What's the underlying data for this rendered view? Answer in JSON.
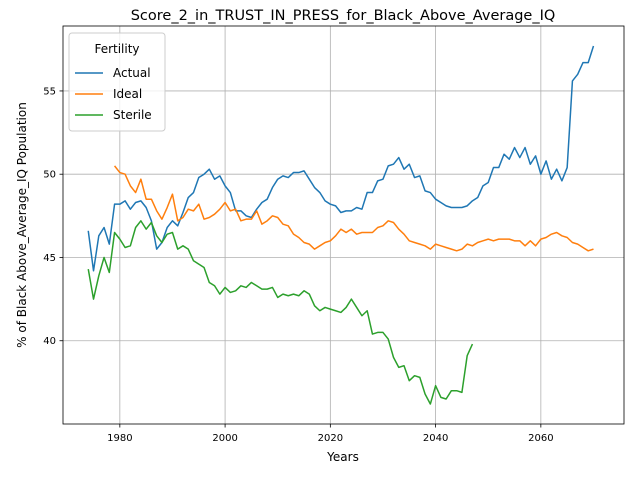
{
  "chart_data": {
    "type": "line",
    "title": "Score_2_in_TRUST_IN_PRESS_for_Black_Above_Average_IQ",
    "xlabel": "Years",
    "ylabel": "% of Black Above_Average_IQ Population",
    "xlim": [
      1969.2,
      2075.8
    ],
    "ylim": [
      35.0,
      58.9
    ],
    "xticks": [
      1980,
      2000,
      2020,
      2040,
      2060
    ],
    "yticks": [
      40,
      45,
      50,
      55
    ],
    "grid": true,
    "legend": {
      "title": "Fertility",
      "placement": "top-left"
    },
    "series": [
      {
        "name": "Actual",
        "color": "#1f77b4",
        "points": [
          [
            1974,
            46.6
          ],
          [
            1975,
            44.2
          ],
          [
            1976,
            46.3
          ],
          [
            1977,
            46.8
          ],
          [
            1978,
            45.8
          ],
          [
            1979,
            48.2
          ],
          [
            1980,
            48.2
          ],
          [
            1981,
            48.4
          ],
          [
            1982,
            47.9
          ],
          [
            1983,
            48.3
          ],
          [
            1984,
            48.4
          ],
          [
            1985,
            48.0
          ],
          [
            1986,
            47.2
          ],
          [
            1987,
            45.5
          ],
          [
            1988,
            45.9
          ],
          [
            1989,
            46.8
          ],
          [
            1990,
            47.2
          ],
          [
            1991,
            46.9
          ],
          [
            1992,
            47.7
          ],
          [
            1993,
            48.6
          ],
          [
            1994,
            48.9
          ],
          [
            1995,
            49.8
          ],
          [
            1996,
            50.0
          ],
          [
            1997,
            50.3
          ],
          [
            1998,
            49.7
          ],
          [
            1999,
            49.9
          ],
          [
            2000,
            49.3
          ],
          [
            2001,
            48.9
          ],
          [
            2002,
            47.8
          ],
          [
            2003,
            47.8
          ],
          [
            2004,
            47.5
          ],
          [
            2005,
            47.4
          ],
          [
            2006,
            47.9
          ],
          [
            2007,
            48.3
          ],
          [
            2008,
            48.5
          ],
          [
            2009,
            49.2
          ],
          [
            2010,
            49.7
          ],
          [
            2011,
            49.9
          ],
          [
            2012,
            49.8
          ],
          [
            2013,
            50.1
          ],
          [
            2014,
            50.1
          ],
          [
            2015,
            50.2
          ],
          [
            2016,
            49.7
          ],
          [
            2017,
            49.2
          ],
          [
            2018,
            48.9
          ],
          [
            2019,
            48.4
          ],
          [
            2020,
            48.2
          ],
          [
            2021,
            48.1
          ],
          [
            2022,
            47.7
          ],
          [
            2023,
            47.8
          ],
          [
            2024,
            47.8
          ],
          [
            2025,
            48.0
          ],
          [
            2026,
            47.9
          ],
          [
            2027,
            48.9
          ],
          [
            2028,
            48.9
          ],
          [
            2029,
            49.6
          ],
          [
            2030,
            49.7
          ],
          [
            2031,
            50.5
          ],
          [
            2032,
            50.6
          ],
          [
            2033,
            51.0
          ],
          [
            2034,
            50.3
          ],
          [
            2035,
            50.6
          ],
          [
            2036,
            49.8
          ],
          [
            2037,
            49.9
          ],
          [
            2038,
            49.0
          ],
          [
            2039,
            48.9
          ],
          [
            2040,
            48.5
          ],
          [
            2041,
            48.3
          ],
          [
            2042,
            48.1
          ],
          [
            2043,
            48.0
          ],
          [
            2044,
            48.0
          ],
          [
            2045,
            48.0
          ],
          [
            2046,
            48.1
          ],
          [
            2047,
            48.4
          ],
          [
            2048,
            48.6
          ],
          [
            2049,
            49.3
          ],
          [
            2050,
            49.5
          ],
          [
            2051,
            50.4
          ],
          [
            2052,
            50.4
          ],
          [
            2053,
            51.2
          ],
          [
            2054,
            50.9
          ],
          [
            2055,
            51.6
          ],
          [
            2056,
            51.0
          ],
          [
            2057,
            51.6
          ],
          [
            2058,
            50.6
          ],
          [
            2059,
            51.1
          ],
          [
            2060,
            50.0
          ],
          [
            2061,
            50.8
          ],
          [
            2062,
            49.7
          ],
          [
            2063,
            50.3
          ],
          [
            2064,
            49.6
          ],
          [
            2065,
            50.4
          ],
          [
            2066,
            55.6
          ],
          [
            2067,
            56.0
          ],
          [
            2068,
            56.7
          ],
          [
            2069,
            56.7
          ],
          [
            2070,
            57.7
          ]
        ]
      },
      {
        "name": "Ideal",
        "color": "#ff7f0e",
        "points": [
          [
            1979,
            50.5
          ],
          [
            1980,
            50.1
          ],
          [
            1981,
            50.0
          ],
          [
            1982,
            49.3
          ],
          [
            1983,
            48.9
          ],
          [
            1984,
            49.7
          ],
          [
            1985,
            48.5
          ],
          [
            1986,
            48.5
          ],
          [
            1987,
            47.8
          ],
          [
            1988,
            47.3
          ],
          [
            1989,
            48.0
          ],
          [
            1990,
            48.8
          ],
          [
            1991,
            47.2
          ],
          [
            1992,
            47.4
          ],
          [
            1993,
            47.9
          ],
          [
            1994,
            47.8
          ],
          [
            1995,
            48.2
          ],
          [
            1996,
            47.3
          ],
          [
            1997,
            47.4
          ],
          [
            1998,
            47.6
          ],
          [
            1999,
            47.9
          ],
          [
            2000,
            48.3
          ],
          [
            2001,
            47.8
          ],
          [
            2002,
            47.9
          ],
          [
            2003,
            47.2
          ],
          [
            2004,
            47.3
          ],
          [
            2005,
            47.3
          ],
          [
            2006,
            47.8
          ],
          [
            2007,
            47.0
          ],
          [
            2008,
            47.2
          ],
          [
            2009,
            47.5
          ],
          [
            2010,
            47.4
          ],
          [
            2011,
            47.0
          ],
          [
            2012,
            46.9
          ],
          [
            2013,
            46.4
          ],
          [
            2014,
            46.2
          ],
          [
            2015,
            45.9
          ],
          [
            2016,
            45.8
          ],
          [
            2017,
            45.5
          ],
          [
            2018,
            45.7
          ],
          [
            2019,
            45.9
          ],
          [
            2020,
            46.0
          ],
          [
            2021,
            46.3
          ],
          [
            2022,
            46.7
          ],
          [
            2023,
            46.5
          ],
          [
            2024,
            46.7
          ],
          [
            2025,
            46.4
          ],
          [
            2026,
            46.5
          ],
          [
            2027,
            46.5
          ],
          [
            2028,
            46.5
          ],
          [
            2029,
            46.8
          ],
          [
            2030,
            46.9
          ],
          [
            2031,
            47.2
          ],
          [
            2032,
            47.1
          ],
          [
            2033,
            46.7
          ],
          [
            2034,
            46.4
          ],
          [
            2035,
            46.0
          ],
          [
            2036,
            45.9
          ],
          [
            2037,
            45.8
          ],
          [
            2038,
            45.7
          ],
          [
            2039,
            45.5
          ],
          [
            2040,
            45.8
          ],
          [
            2041,
            45.7
          ],
          [
            2042,
            45.6
          ],
          [
            2043,
            45.5
          ],
          [
            2044,
            45.4
          ],
          [
            2045,
            45.5
          ],
          [
            2046,
            45.8
          ],
          [
            2047,
            45.7
          ],
          [
            2048,
            45.9
          ],
          [
            2049,
            46.0
          ],
          [
            2050,
            46.1
          ],
          [
            2051,
            46.0
          ],
          [
            2052,
            46.1
          ],
          [
            2053,
            46.1
          ],
          [
            2054,
            46.1
          ],
          [
            2055,
            46.0
          ],
          [
            2056,
            46.0
          ],
          [
            2057,
            45.7
          ],
          [
            2058,
            46.0
          ],
          [
            2059,
            45.7
          ],
          [
            2060,
            46.1
          ],
          [
            2061,
            46.2
          ],
          [
            2062,
            46.4
          ],
          [
            2063,
            46.5
          ],
          [
            2064,
            46.3
          ],
          [
            2065,
            46.2
          ],
          [
            2066,
            45.9
          ],
          [
            2067,
            45.8
          ],
          [
            2068,
            45.6
          ],
          [
            2069,
            45.4
          ],
          [
            2070,
            45.5
          ]
        ]
      },
      {
        "name": "Sterile",
        "color": "#2ca02c",
        "points": [
          [
            1974,
            44.3
          ],
          [
            1975,
            42.5
          ],
          [
            1976,
            43.9
          ],
          [
            1977,
            45.0
          ],
          [
            1978,
            44.1
          ],
          [
            1979,
            46.5
          ],
          [
            1980,
            46.1
          ],
          [
            1981,
            45.6
          ],
          [
            1982,
            45.7
          ],
          [
            1983,
            46.8
          ],
          [
            1984,
            47.2
          ],
          [
            1985,
            46.7
          ],
          [
            1986,
            47.1
          ],
          [
            1987,
            46.3
          ],
          [
            1988,
            45.9
          ],
          [
            1989,
            46.4
          ],
          [
            1990,
            46.5
          ],
          [
            1991,
            45.5
          ],
          [
            1992,
            45.7
          ],
          [
            1993,
            45.5
          ],
          [
            1994,
            44.8
          ],
          [
            1995,
            44.6
          ],
          [
            1996,
            44.4
          ],
          [
            1997,
            43.5
          ],
          [
            1998,
            43.3
          ],
          [
            1999,
            42.8
          ],
          [
            2000,
            43.2
          ],
          [
            2001,
            42.9
          ],
          [
            2002,
            43.0
          ],
          [
            2003,
            43.3
          ],
          [
            2004,
            43.2
          ],
          [
            2005,
            43.5
          ],
          [
            2006,
            43.3
          ],
          [
            2007,
            43.1
          ],
          [
            2008,
            43.1
          ],
          [
            2009,
            43.2
          ],
          [
            2010,
            42.6
          ],
          [
            2011,
            42.8
          ],
          [
            2012,
            42.7
          ],
          [
            2013,
            42.8
          ],
          [
            2014,
            42.7
          ],
          [
            2015,
            43.0
          ],
          [
            2016,
            42.8
          ],
          [
            2017,
            42.1
          ],
          [
            2018,
            41.8
          ],
          [
            2019,
            42.0
          ],
          [
            2020,
            41.9
          ],
          [
            2021,
            41.8
          ],
          [
            2022,
            41.7
          ],
          [
            2023,
            42.0
          ],
          [
            2024,
            42.5
          ],
          [
            2025,
            42.0
          ],
          [
            2026,
            41.5
          ],
          [
            2027,
            41.8
          ],
          [
            2028,
            40.4
          ],
          [
            2029,
            40.5
          ],
          [
            2030,
            40.5
          ],
          [
            2031,
            40.1
          ],
          [
            2032,
            39.0
          ],
          [
            2033,
            38.4
          ],
          [
            2034,
            38.5
          ],
          [
            2035,
            37.6
          ],
          [
            2036,
            37.9
          ],
          [
            2037,
            37.8
          ],
          [
            2038,
            36.8
          ],
          [
            2039,
            36.2
          ],
          [
            2040,
            37.3
          ],
          [
            2041,
            36.6
          ],
          [
            2042,
            36.5
          ],
          [
            2043,
            37.0
          ],
          [
            2044,
            37.0
          ],
          [
            2045,
            36.9
          ],
          [
            2046,
            39.1
          ],
          [
            2047,
            39.8
          ]
        ]
      }
    ]
  }
}
